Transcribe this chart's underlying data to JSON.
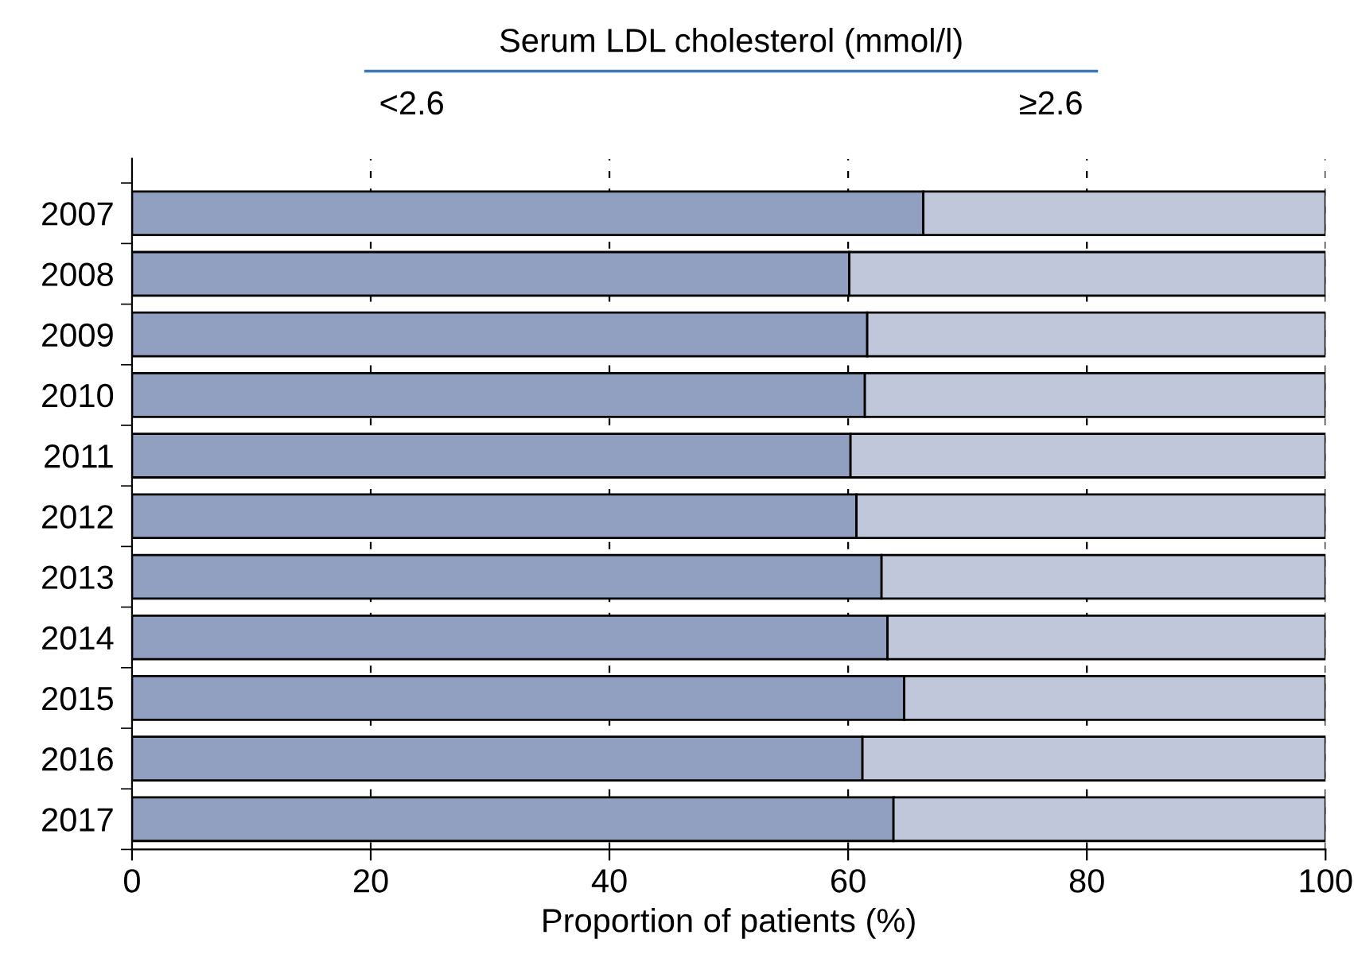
{
  "chart_data": {
    "type": "bar",
    "orientation": "horizontal",
    "stacked": true,
    "legend_title": "Serum LDL cholesterol (mmol/l)",
    "xlabel": "Proportion of patients (%)",
    "categories": [
      "2007",
      "2008",
      "2009",
      "2010",
      "2011",
      "2012",
      "2013",
      "2014",
      "2015",
      "2016",
      "2017"
    ],
    "series": [
      {
        "name": "<2.6",
        "color": "#919fc0",
        "values": [
          66.3,
          60.1,
          61.6,
          61.4,
          60.2,
          60.7,
          62.8,
          63.3,
          64.7,
          61.2,
          63.8
        ]
      },
      {
        "name": "≥2.6",
        "color": "#c1c7db",
        "values": [
          33.7,
          39.9,
          38.4,
          38.6,
          39.8,
          39.3,
          37.2,
          36.7,
          35.3,
          38.8,
          36.2
        ]
      }
    ],
    "xlim": [
      0,
      100
    ],
    "xticks": [
      0,
      20,
      40,
      60,
      80,
      100
    ],
    "grid": "x",
    "legend": "top"
  }
}
